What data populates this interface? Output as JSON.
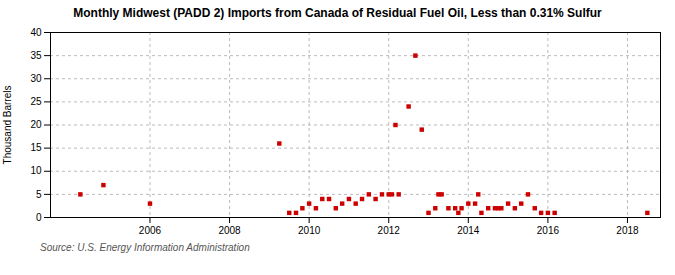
{
  "chart_data": {
    "type": "scatter",
    "title": "Monthly Midwest (PADD 2) Imports from Canada of Residual Fuel Oil, Less than 0.31% Sulfur",
    "ylabel": "Thousand Barrels",
    "source": "Source: U.S. Energy Information Administration",
    "x": [
      2004.25,
      2004.83,
      2006.0,
      2009.25,
      2009.5,
      2009.67,
      2009.83,
      2010.0,
      2010.17,
      2010.33,
      2010.5,
      2010.67,
      2010.83,
      2011.0,
      2011.17,
      2011.33,
      2011.5,
      2011.67,
      2011.83,
      2012.0,
      2012.08,
      2012.17,
      2012.25,
      2012.5,
      2012.67,
      2012.83,
      2013.0,
      2013.17,
      2013.25,
      2013.33,
      2013.5,
      2013.67,
      2013.75,
      2013.83,
      2014.0,
      2014.17,
      2014.25,
      2014.33,
      2014.5,
      2014.67,
      2014.75,
      2014.83,
      2015.0,
      2015.17,
      2015.33,
      2015.5,
      2015.67,
      2015.83,
      2016.0,
      2016.17,
      2018.5
    ],
    "values": [
      5,
      7,
      3,
      16,
      1,
      1,
      2,
      3,
      2,
      4,
      4,
      2,
      3,
      4,
      3,
      4,
      5,
      4,
      5,
      5,
      5,
      20,
      5,
      24,
      35,
      19,
      1,
      2,
      5,
      5,
      2,
      2,
      1,
      2,
      3,
      3,
      5,
      1,
      2,
      2,
      2,
      2,
      3,
      2,
      3,
      5,
      2,
      1,
      1,
      1,
      1
    ],
    "color": "#cc0000",
    "marker": "square",
    "xlim": [
      2003.5,
      2018.83
    ],
    "xticks": [
      2006,
      2008,
      2010,
      2012,
      2014,
      2016,
      2018
    ],
    "ylim": [
      0,
      40
    ],
    "yticks": [
      0,
      5,
      10,
      15,
      20,
      25,
      30,
      35,
      40
    ],
    "grid": true
  }
}
